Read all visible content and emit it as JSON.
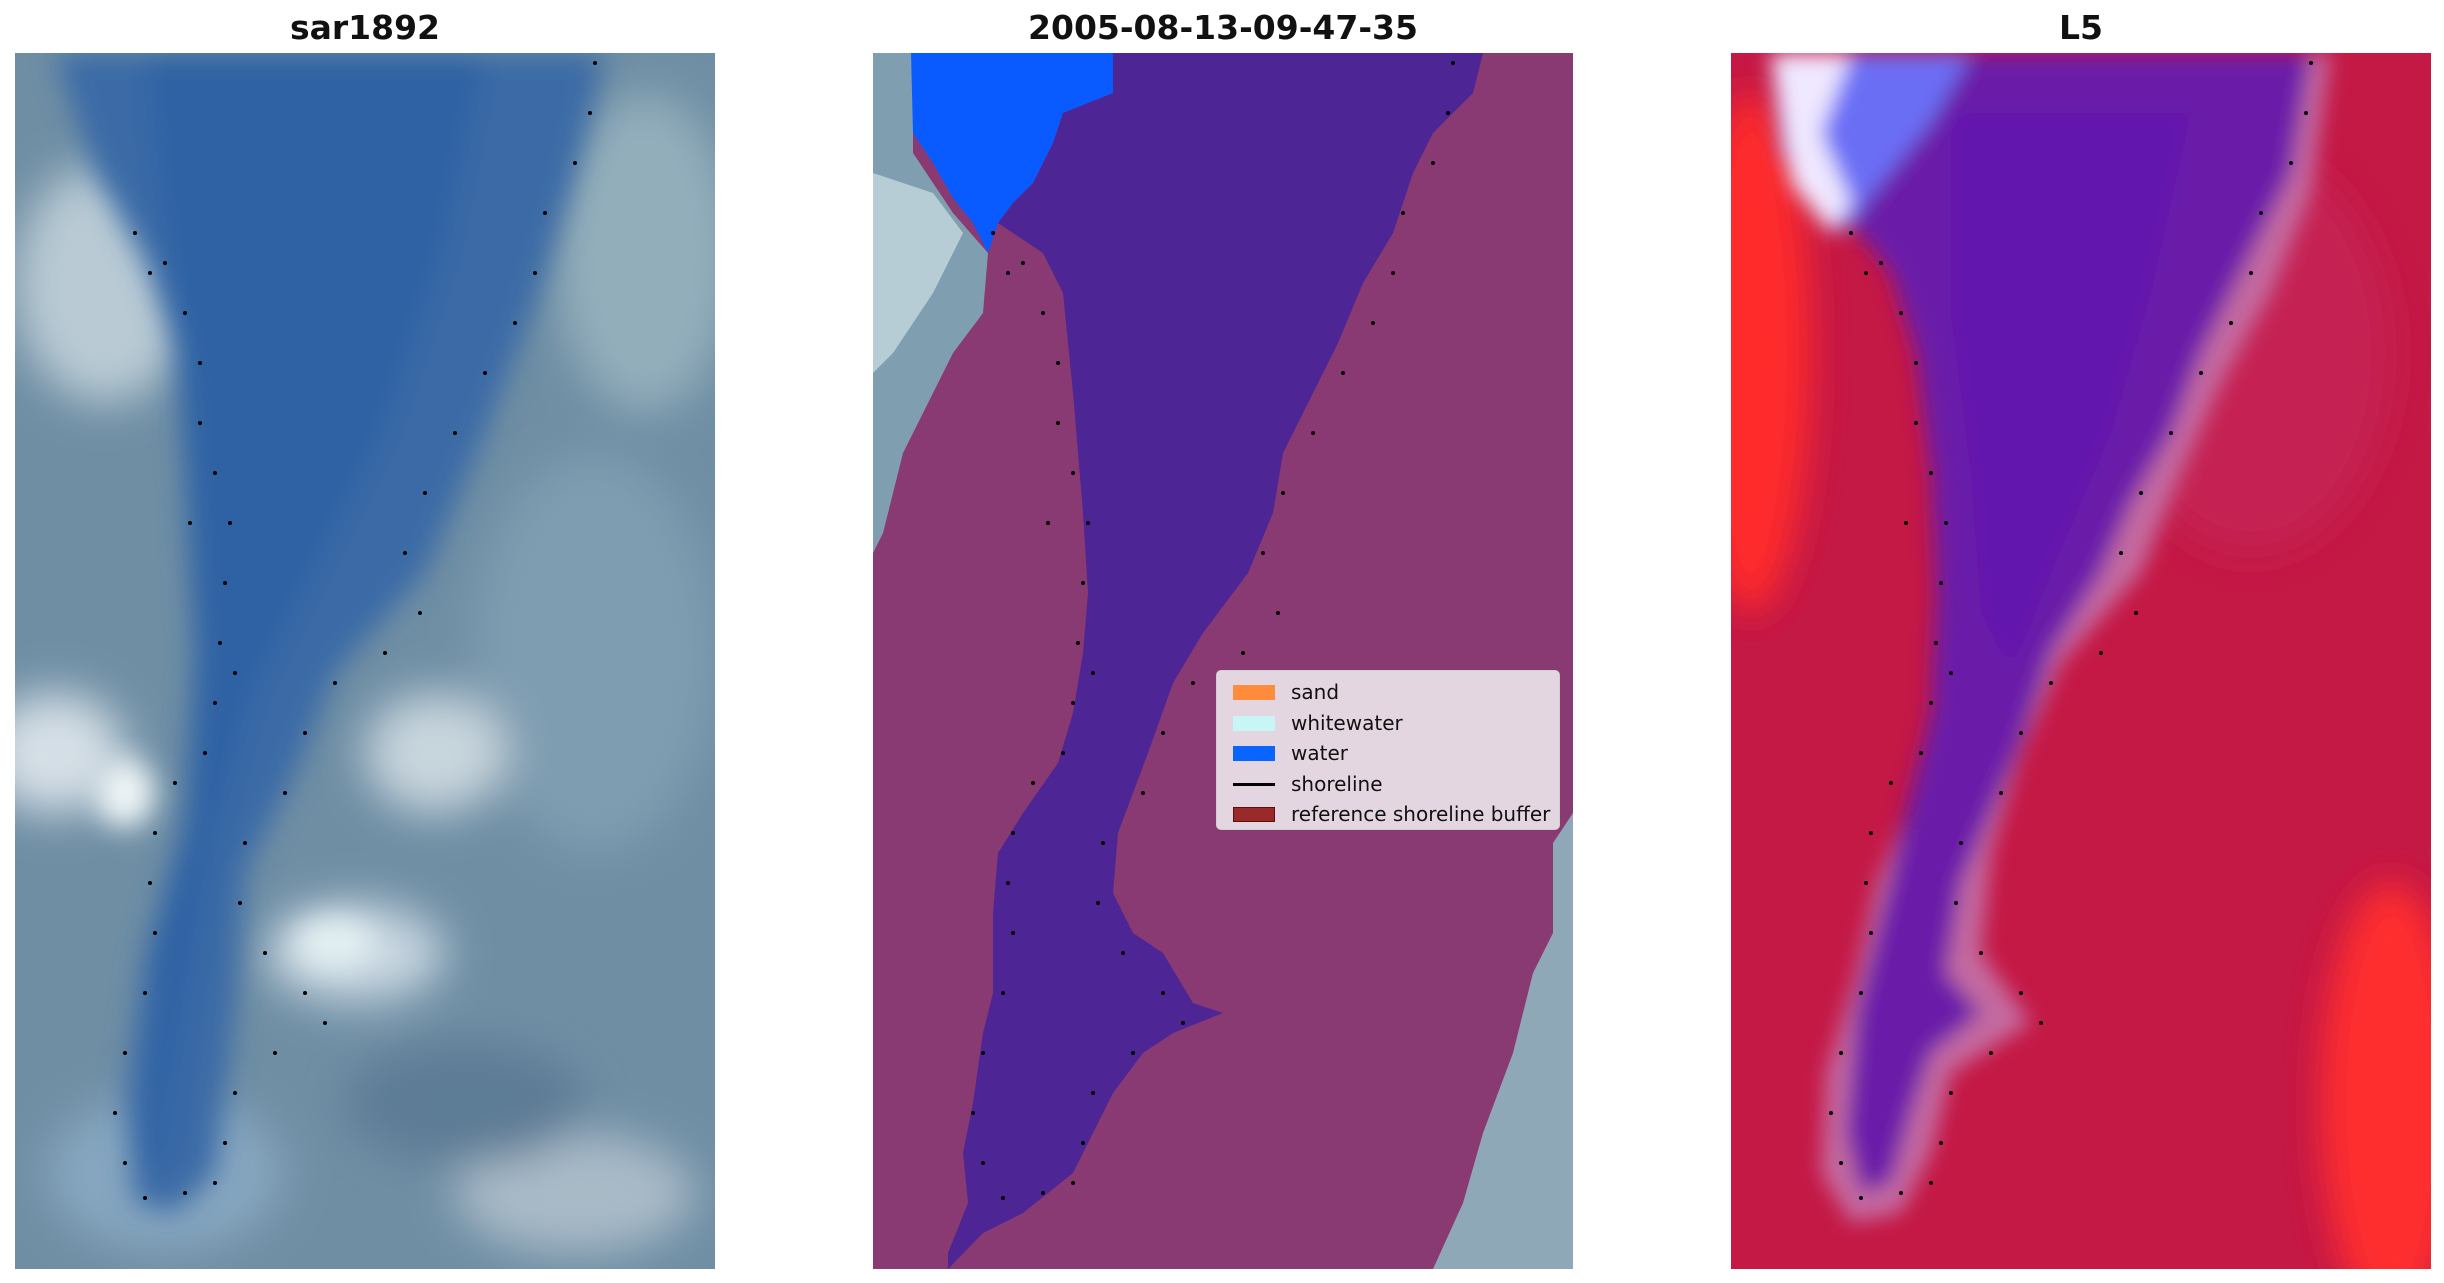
{
  "panels": [
    {
      "title": "sar1892"
    },
    {
      "title": "2005-08-13-09-47-35"
    },
    {
      "title": "L5"
    }
  ],
  "legend": {
    "items": [
      {
        "label": "sand",
        "color": "#ff8c3c",
        "kind": "patch"
      },
      {
        "label": "whitewater",
        "color": "#c8f6f6",
        "kind": "patch"
      },
      {
        "label": "water",
        "color": "#0a64ff",
        "kind": "patch"
      },
      {
        "label": "shoreline",
        "color": "#000000",
        "kind": "line"
      },
      {
        "label": "reference shoreline buffer",
        "color": "#9a2a2a",
        "kind": "patch"
      }
    ]
  },
  "colors": {
    "rgb_channel_blue": "#3c6ea8",
    "rgb_land": "#6f8ea4",
    "classified_water": "#4d2595",
    "classified_land": "#8a3a72",
    "classified_top_water": "#0a5bff",
    "mndwi_land": "#c41845",
    "mndwi_water": "#6a1ea8",
    "shoreline_dots": "#000000"
  }
}
